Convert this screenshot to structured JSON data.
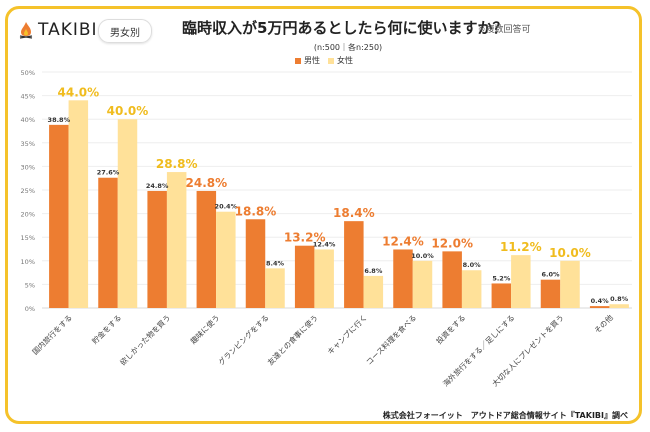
{
  "header": {
    "brand": "TAKIBI",
    "badge": "男女別",
    "title": "臨時収入が5万円あるとしたら何に使いますか？",
    "note": "※複数回答可",
    "sample": "(n:500｜各n:250)"
  },
  "colors": {
    "male": "#ed7d31",
    "female": "#ffe199",
    "highlight_male": "#ed7d31",
    "highlight_female": "#f0bc1e",
    "frame": "#f5c22a"
  },
  "credit": "株式会社フォーイット　アウトドア総合情報サイト『TAKIBI』調べ",
  "chart_data": {
    "type": "bar",
    "title": "臨時収入が5万円あるとしたら何に使いますか？",
    "subtitle": "(n:500｜各n:250)",
    "xlabel": "",
    "ylabel": "",
    "ylim": [
      0,
      50
    ],
    "yticks": [
      0,
      5,
      10,
      15,
      20,
      25,
      30,
      35,
      40,
      45,
      50
    ],
    "ytick_suffix": "%",
    "grid": true,
    "legend": "top-center",
    "categories": [
      "国内旅行をする",
      "貯金をする",
      "欲しかった物を買う",
      "趣味に使う",
      "グランピングをする",
      "友達との食事に使う",
      "キャンプに行く",
      "コース料理を食べる",
      "投資をする",
      "海外旅行をする／足しにする",
      "大切な人にプレゼントを買う",
      "その他"
    ],
    "series": [
      {
        "name": "男性",
        "values": [
          38.8,
          27.6,
          24.8,
          24.8,
          18.8,
          13.2,
          18.4,
          12.4,
          12.0,
          5.2,
          6.0,
          0.4
        ]
      },
      {
        "name": "女性",
        "values": [
          44.0,
          40.0,
          28.8,
          20.4,
          8.4,
          12.4,
          6.8,
          10.0,
          8.0,
          11.2,
          10.0,
          0.8
        ]
      }
    ],
    "data_labels": {
      "男性": [
        "38.8%",
        "27.6%",
        "24.8%",
        "24.8%",
        "18.8%",
        "13.2%",
        "18.4%",
        "12.4%",
        "12.0%",
        "5.2%",
        "6.0%",
        "0.4%"
      ],
      "女性": [
        "44.0%",
        "40.0%",
        "28.8%",
        "20.4%",
        "8.4%",
        "12.4%",
        "6.8%",
        "10.0%",
        "8.0%",
        "11.2%",
        "10.0%",
        "0.8%"
      ]
    },
    "highlighted_label": [
      "女性",
      "女性",
      "女性",
      "男性",
      "男性",
      "男性",
      "男性",
      "男性",
      "男性",
      "女性",
      "女性",
      "none"
    ]
  }
}
